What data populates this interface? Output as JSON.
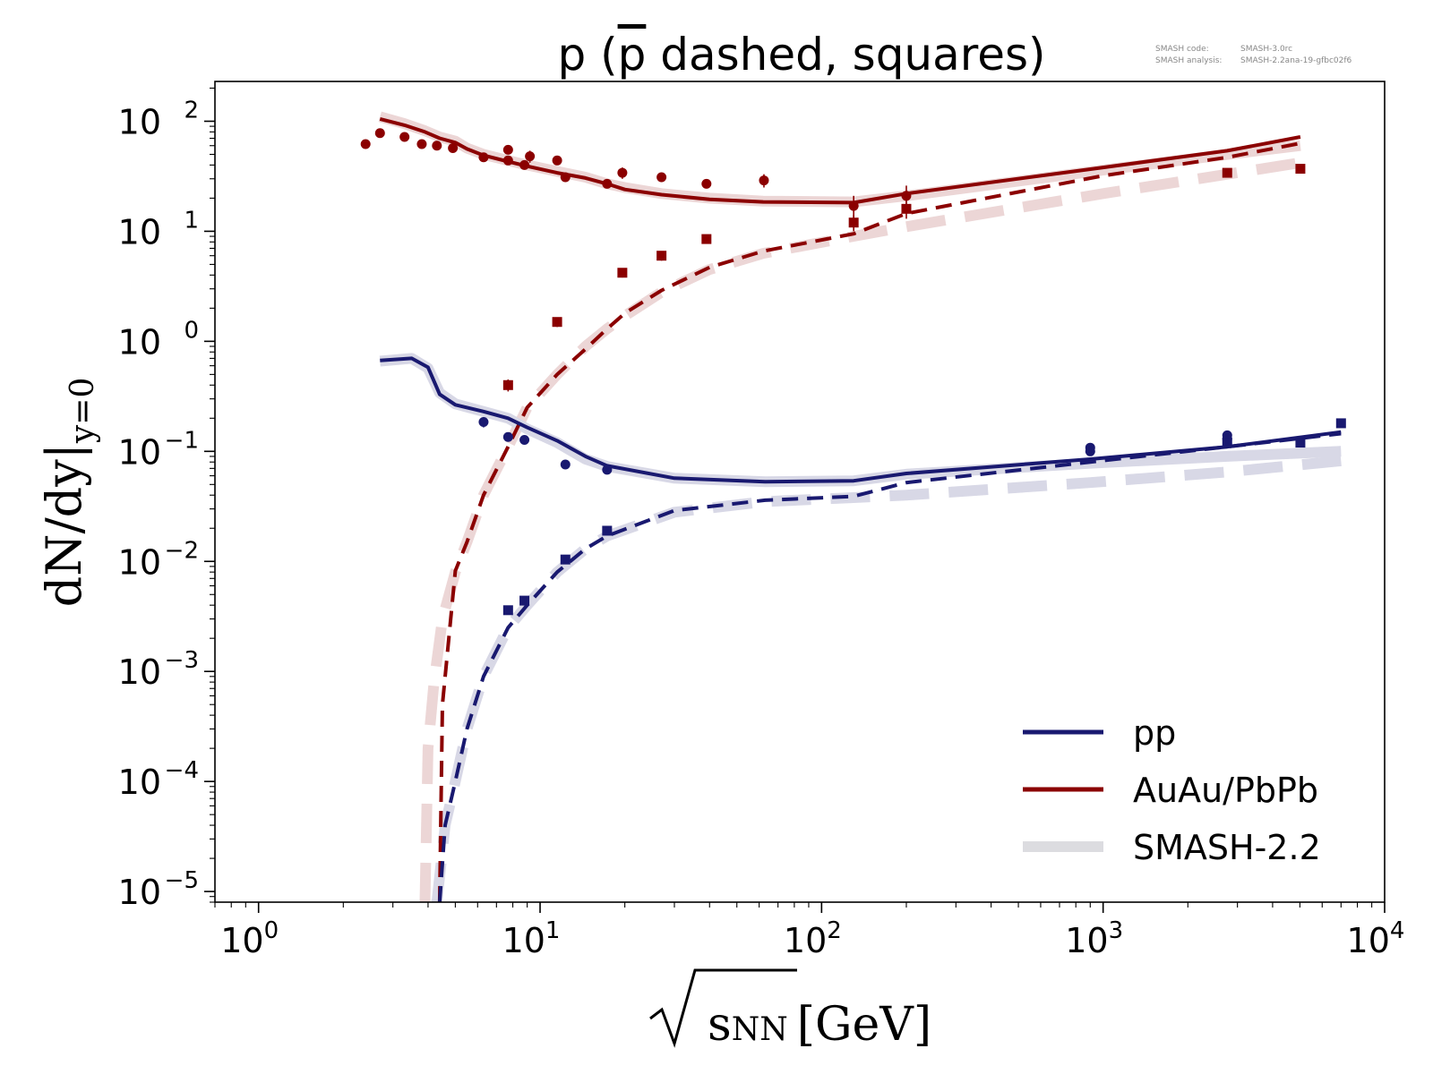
{
  "meta": {
    "code_label": "SMASH code:",
    "code_value": "SMASH-3.0rc",
    "analysis_label": "SMASH analysis:",
    "analysis_value": "SMASH-2.2ana-19-gfbc02f6"
  },
  "chart_data": {
    "type": "line",
    "title": "p (p̄ dashed, squares)",
    "title_parts": {
      "pre": "p (",
      "pbar": "p",
      "post": " dashed, squares)"
    },
    "xlabel": "√sNN [GeV]",
    "xlabel_parts": {
      "var": "s",
      "sub": "NN",
      "unit": "[GeV]"
    },
    "ylabel": "dN/dy|y=0",
    "ylabel_parts": {
      "main": "dN/dy|",
      "sub": "y=0"
    },
    "xscale": "log",
    "yscale": "log",
    "xlim": [
      0.7,
      10000
    ],
    "ylim": [
      8e-06,
      230
    ],
    "grid": false,
    "legend_position": "lower-right",
    "x_ticks": [
      {
        "value": 1,
        "base": "10",
        "exp": "0"
      },
      {
        "value": 10,
        "base": "10",
        "exp": "1"
      },
      {
        "value": 100,
        "base": "10",
        "exp": "2"
      },
      {
        "value": 1000,
        "base": "10",
        "exp": "3"
      },
      {
        "value": 10000,
        "base": "10",
        "exp": "4"
      }
    ],
    "y_ticks": [
      {
        "value": 1e-05,
        "base": "10",
        "exp": "−5"
      },
      {
        "value": 0.0001,
        "base": "10",
        "exp": "−4"
      },
      {
        "value": 0.001,
        "base": "10",
        "exp": "−3"
      },
      {
        "value": 0.01,
        "base": "10",
        "exp": "−2"
      },
      {
        "value": 0.1,
        "base": "10",
        "exp": "−1"
      },
      {
        "value": 1,
        "base": "10",
        "exp": "0"
      },
      {
        "value": 10,
        "base": "10",
        "exp": "1"
      },
      {
        "value": 100,
        "base": "10",
        "exp": "2"
      }
    ],
    "legend": [
      {
        "label": "pp",
        "color": "#191970",
        "style": "solid"
      },
      {
        "label": "AuAu/PbPb",
        "color": "#8b0000",
        "style": "solid"
      },
      {
        "label": "SMASH-2.2",
        "color": "#dcdce0",
        "style": "band"
      }
    ],
    "colors": {
      "pp": "#191970",
      "auau": "#8b0000",
      "auau_ref": "#ecd6d6",
      "pp_ref": "#d8d8e6"
    },
    "series": [
      {
        "name": "AuAu/PbPb",
        "kind": "smash-2.2",
        "particle": "p",
        "dash": false,
        "x": [
          2.7,
          3.3,
          3.9,
          4.4,
          5.0,
          5.5,
          6.3,
          7.7,
          9.0,
          11.5,
          14.5,
          17.3,
          20,
          27,
          40,
          62,
          130,
          200,
          1000,
          2760,
          5020
        ],
        "y": [
          110,
          95,
          82,
          72,
          66,
          57,
          50,
          44,
          40,
          35,
          31,
          27,
          25,
          22,
          20,
          18.8,
          18.5,
          21,
          36,
          50,
          60
        ]
      },
      {
        "name": "AuAu/PbPb",
        "kind": "smash-2.2",
        "particle": "pbar",
        "dash": true,
        "x": [
          3.9,
          4.0,
          4.2,
          4.5,
          5.0,
          5.5,
          6.3,
          7.7,
          9.0,
          11.5,
          14.5,
          17.3,
          20,
          27,
          40,
          62,
          130,
          200,
          1000,
          2760,
          5020
        ],
        "y": [
          8e-06,
          0.0002,
          0.0008,
          0.003,
          0.008,
          0.015,
          0.04,
          0.11,
          0.25,
          0.5,
          0.9,
          1.3,
          1.7,
          2.8,
          4.5,
          6.3,
          9.0,
          11,
          22,
          33,
          42
        ]
      },
      {
        "name": "pp",
        "kind": "smash-2.2",
        "particle": "p",
        "dash": false,
        "x": [
          2.7,
          3.5,
          4.0,
          4.4,
          5.0,
          6.3,
          7.7,
          9.0,
          11.5,
          14.5,
          17.3,
          30,
          63,
          130,
          200,
          900,
          2760,
          7000
        ],
        "y": [
          0.66,
          0.7,
          0.57,
          0.34,
          0.27,
          0.23,
          0.2,
          0.16,
          0.12,
          0.085,
          0.073,
          0.057,
          0.053,
          0.054,
          0.062,
          0.078,
          0.09,
          0.1
        ]
      },
      {
        "name": "pp",
        "kind": "smash-2.2",
        "particle": "pbar",
        "dash": true,
        "x": [
          4.3,
          4.6,
          5.0,
          5.5,
          6.3,
          7.7,
          9.0,
          11.5,
          14.5,
          17.3,
          30,
          63,
          130,
          200,
          900,
          2760,
          7000
        ],
        "y": [
          8e-06,
          4e-05,
          0.0001,
          0.0003,
          0.0009,
          0.0025,
          0.004,
          0.008,
          0.013,
          0.017,
          0.028,
          0.035,
          0.038,
          0.04,
          0.052,
          0.065,
          0.082
        ]
      },
      {
        "name": "AuAu/PbPb",
        "kind": "model",
        "particle": "p",
        "dash": false,
        "x": [
          2.7,
          3.3,
          3.9,
          4.4,
          5.0,
          5.5,
          6.3,
          7.7,
          9.0,
          11.5,
          14.5,
          17.3,
          20,
          27,
          40,
          62,
          130,
          200,
          1000,
          2760,
          5020
        ],
        "y": [
          105,
          92,
          80,
          70,
          64,
          56,
          49,
          43,
          39,
          34,
          30.5,
          27,
          24,
          21.5,
          19.5,
          18.5,
          18.2,
          22,
          38,
          54,
          72
        ]
      },
      {
        "name": "AuAu/PbPb",
        "kind": "model",
        "particle": "pbar",
        "dash": true,
        "x": [
          4.4,
          4.5,
          5.0,
          5.5,
          6.3,
          7.7,
          9.0,
          11.5,
          14.5,
          17.3,
          20,
          27,
          40,
          62,
          130,
          200,
          1000,
          2760,
          5020
        ],
        "y": [
          8e-06,
          0.0005,
          0.0082,
          0.015,
          0.04,
          0.11,
          0.25,
          0.5,
          0.85,
          1.3,
          1.8,
          2.9,
          4.7,
          6.6,
          9.5,
          14.5,
          32,
          47,
          63
        ]
      },
      {
        "name": "pp",
        "kind": "model",
        "particle": "p",
        "dash": false,
        "x": [
          2.7,
          3.5,
          4.0,
          4.4,
          5.0,
          6.3,
          7.7,
          9.0,
          11.5,
          14.5,
          17.3,
          30,
          63,
          130,
          200,
          900,
          2760,
          7000
        ],
        "y": [
          0.67,
          0.7,
          0.58,
          0.33,
          0.265,
          0.23,
          0.2,
          0.165,
          0.125,
          0.09,
          0.074,
          0.057,
          0.053,
          0.054,
          0.063,
          0.085,
          0.11,
          0.15
        ]
      },
      {
        "name": "pp",
        "kind": "model",
        "particle": "pbar",
        "dash": true,
        "x": [
          4.4,
          4.6,
          5.0,
          5.5,
          6.3,
          7.7,
          9.0,
          11.5,
          14.5,
          17.3,
          30,
          63,
          130,
          200,
          900,
          2760,
          7000
        ],
        "y": [
          8e-06,
          4e-05,
          0.0001,
          0.0003,
          0.0009,
          0.0025,
          0.004,
          0.008,
          0.013,
          0.017,
          0.029,
          0.036,
          0.039,
          0.052,
          0.08,
          0.11,
          0.145
        ]
      }
    ],
    "data_points": [
      {
        "name": "AuAu/PbPb",
        "particle": "p",
        "marker": "circle",
        "x": [
          2.4,
          2.7,
          3.3,
          3.8,
          4.3,
          4.9,
          6.3,
          7.7,
          7.7,
          8.8,
          9.2,
          11.5,
          12.3,
          17.3,
          19.6,
          27,
          39,
          62.4,
          130,
          200
        ],
        "y": [
          62,
          78,
          72,
          62,
          60,
          57,
          47,
          44,
          55,
          40,
          48,
          44,
          31,
          27,
          34,
          31,
          27,
          29,
          17,
          21
        ],
        "yerr": [
          4,
          4,
          4,
          3,
          3,
          3,
          3,
          3,
          3,
          3,
          6,
          4,
          2,
          2,
          4,
          3,
          2,
          4,
          4,
          5
        ]
      },
      {
        "name": "AuAu/PbPb",
        "particle": "pbar",
        "marker": "square",
        "x": [
          7.7,
          11.5,
          19.6,
          27,
          39,
          130,
          200,
          2760,
          5020
        ],
        "y": [
          0.4,
          1.5,
          4.2,
          6.0,
          8.5,
          12,
          16,
          34,
          37
        ],
        "yerr": [
          0.05,
          0.15,
          0.4,
          0.6,
          0.8,
          2,
          3,
          3,
          3
        ]
      },
      {
        "name": "pp",
        "particle": "p",
        "marker": "circle",
        "x": [
          6.3,
          7.7,
          8.8,
          12.3,
          17.3,
          900,
          900,
          2760,
          2760
        ],
        "y": [
          0.185,
          0.135,
          0.127,
          0.076,
          0.068,
          0.1,
          0.108,
          0.13,
          0.14
        ],
        "yerr": [
          0.02,
          0.01,
          0.01,
          0.005,
          0.006,
          0.008,
          0.008,
          0.01,
          0.01
        ]
      },
      {
        "name": "pp",
        "particle": "pbar",
        "marker": "square",
        "x": [
          7.7,
          8.8,
          12.3,
          17.3,
          2760,
          5020,
          7000
        ],
        "y": [
          0.0036,
          0.0044,
          0.0104,
          0.019,
          0.12,
          0.12,
          0.18
        ],
        "yerr": [
          0.0003,
          0.0004,
          0.0008,
          0.0015,
          0.01,
          0.01,
          0.015
        ]
      }
    ]
  }
}
